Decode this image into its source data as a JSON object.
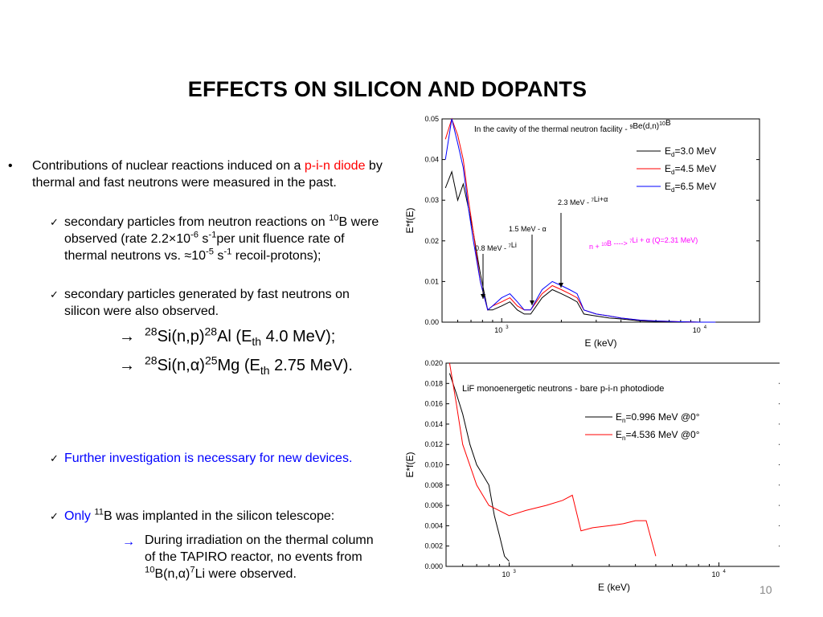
{
  "title": "EFFECTS ON SILICON AND DOPANTS",
  "slide_number": "10",
  "bullets": {
    "b1_pre": "Contributions of nuclear reactions induced on a ",
    "b1_red": "p-i-n diode",
    "b1_post": " by thermal and fast neutrons were measured in the past.",
    "c1": {
      "a": "secondary particles from neutron reactions on ",
      "sup1": "10",
      "b": "B were observed (rate 2.2",
      "c": "10",
      "sup2": "-6",
      "d": " s",
      "sup3": "-1",
      "e": "per unit fluence rate of thermal neutrons vs. ",
      "f": "10",
      "sup4": "-5",
      "g": " s",
      "sup5": "-1",
      "h": " recoil-protons);"
    },
    "c2": "secondary particles generated by fast neutrons on silicon were also observed.",
    "r1": {
      "sup1": "28",
      "a": "Si(n,p)",
      "sup2": "28",
      "b": "Al (E",
      "sub": "th",
      "c": " 4.0 MeV);"
    },
    "r2": {
      "sup1": "28",
      "a": "Si(n,",
      "b": ")",
      "sup2": "25",
      "c": "Mg (E",
      "sub": "th",
      "d": " 2.75 MeV)."
    },
    "c3": "Further investigation is necessary for new devices.",
    "c4": {
      "a": "Only ",
      "sup": "11",
      "b": "B",
      "c": " was implanted in the silicon telescope:"
    },
    "r3": {
      "a": "During irradiation on the thermal column of the TAPIRO reactor, no events from ",
      "sup1": "10",
      "b": "B(n,",
      "c": ")",
      "sup2": "7",
      "d": "Li were observed."
    }
  },
  "chart_data": [
    {
      "type": "line",
      "title": "In the cavity of the thermal neutron facility - 9Be(d,n)10B",
      "xlabel": "E (keV)",
      "ylabel": "E*f(E)",
      "x_scale": "log",
      "xlim": [
        500,
        20000
      ],
      "ylim": [
        0,
        0.05
      ],
      "x_ticks": [
        "10",
        "10"
      ],
      "x_tick_sup": [
        "3",
        "4"
      ],
      "y_ticks": [
        "0.00",
        "0.01",
        "0.02",
        "0.03",
        "0.04",
        "0.05"
      ],
      "series": [
        {
          "name": "Ed=3.0 MeV",
          "color": "#000000",
          "x": [
            520,
            560,
            600,
            640,
            680,
            720,
            780,
            850,
            900,
            1000,
            1100,
            1200,
            1300,
            1400,
            1600,
            1800,
            2000,
            2200,
            2400,
            2600,
            3000,
            3500,
            4000,
            5000,
            6000,
            7000,
            8000,
            10000,
            12000
          ],
          "y": [
            0.033,
            0.037,
            0.03,
            0.034,
            0.028,
            0.022,
            0.012,
            0.003,
            0.003,
            0.004,
            0.005,
            0.003,
            0.002,
            0.002,
            0.006,
            0.008,
            0.007,
            0.006,
            0.005,
            0.002,
            0.0015,
            0.001,
            0.0008,
            0.0003,
            0.0002,
            0.0001,
            0.0001,
            0,
            0
          ]
        },
        {
          "name": "Ed=4.5 MeV",
          "color": "#ff0000",
          "x": [
            520,
            560,
            600,
            640,
            680,
            720,
            780,
            850,
            900,
            1000,
            1100,
            1200,
            1300,
            1400,
            1600,
            1800,
            2000,
            2200,
            2400,
            2600,
            3000,
            3500,
            4000,
            5000,
            6000,
            7000,
            8000,
            10000,
            12000
          ],
          "y": [
            0.045,
            0.05,
            0.046,
            0.04,
            0.03,
            0.022,
            0.01,
            0.003,
            0.004,
            0.005,
            0.006,
            0.004,
            0.003,
            0.003,
            0.007,
            0.009,
            0.008,
            0.007,
            0.006,
            0.003,
            0.002,
            0.0015,
            0.001,
            0.0005,
            0.0003,
            0.0002,
            0.0001,
            0,
            0
          ]
        },
        {
          "name": "Ed=6.5 MeV",
          "color": "#0000ff",
          "x": [
            520,
            560,
            600,
            640,
            680,
            720,
            780,
            850,
            900,
            1000,
            1100,
            1200,
            1300,
            1400,
            1600,
            1800,
            2000,
            2200,
            2400,
            2600,
            3000,
            3500,
            4000,
            5000,
            6000,
            7000,
            8000,
            10000,
            12000
          ],
          "y": [
            0.04,
            0.05,
            0.044,
            0.038,
            0.028,
            0.02,
            0.01,
            0.003,
            0.004,
            0.006,
            0.007,
            0.005,
            0.003,
            0.003,
            0.008,
            0.01,
            0.009,
            0.008,
            0.007,
            0.003,
            0.002,
            0.0015,
            0.001,
            0.0005,
            0.0003,
            0.0002,
            0.0001,
            0,
            0
          ]
        }
      ],
      "annotations": [
        {
          "text": "0.8 MeV - 7Li",
          "x": 850,
          "y": 0.005
        },
        {
          "text": "1.5 MeV - α",
          "x": 1600,
          "y": 0.003
        },
        {
          "text": "2.3 MeV - 7Li+α",
          "x": 2400,
          "y": 0.008
        },
        {
          "text": "n + 10B ----> 7Li + α    (Q=2.31 MeV)",
          "color": "#ff00ff"
        }
      ],
      "legend": "top-right"
    },
    {
      "type": "line",
      "title": "LiF monoenergetic neutrons - bare p-i-n photodiode",
      "xlabel": "E (keV)",
      "ylabel": "E*f(E)",
      "x_scale": "log",
      "xlim": [
        500,
        20000
      ],
      "ylim": [
        0,
        0.02
      ],
      "x_ticks": [
        "10",
        "10"
      ],
      "x_tick_sup": [
        "3",
        "4"
      ],
      "y_ticks": [
        "0.000",
        "0.002",
        "0.004",
        "0.006",
        "0.008",
        "0.010",
        "0.012",
        "0.014",
        "0.016",
        "0.018",
        "0.020"
      ],
      "series": [
        {
          "name": "En=0.996 MeV @0°",
          "color": "#000000",
          "x": [
            520,
            560,
            600,
            650,
            700,
            750,
            800,
            850,
            900,
            950,
            1000
          ],
          "y": [
            0.019,
            0.017,
            0.015,
            0.012,
            0.01,
            0.009,
            0.008,
            0.005,
            0.003,
            0.001,
            0.0005
          ]
        },
        {
          "name": "En=4.536 MeV @0°",
          "color": "#ff0000",
          "x": [
            520,
            560,
            600,
            700,
            800,
            1000,
            1200,
            1500,
            1800,
            2000,
            2200,
            2500,
            3000,
            3500,
            4000,
            4500,
            5000
          ],
          "y": [
            0.02,
            0.016,
            0.012,
            0.008,
            0.006,
            0.005,
            0.0055,
            0.006,
            0.0065,
            0.007,
            0.0035,
            0.0038,
            0.004,
            0.0042,
            0.0045,
            0.0045,
            0.001
          ]
        }
      ],
      "legend": "top-right"
    }
  ]
}
